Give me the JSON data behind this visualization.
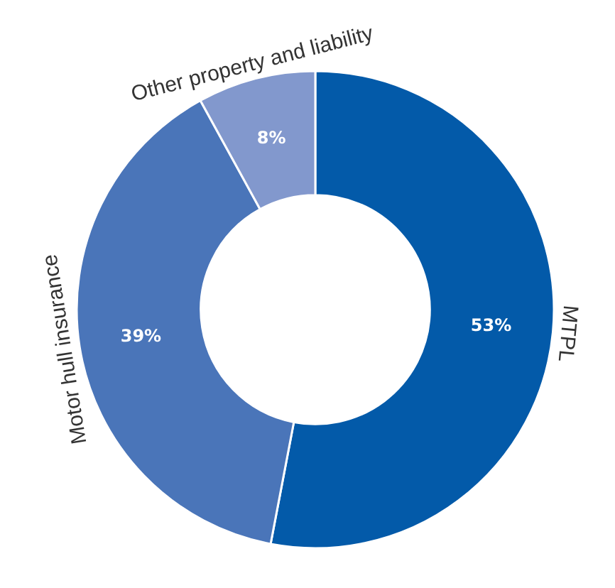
{
  "chart_data": {
    "type": "donut",
    "categories": [
      "MTPL",
      "Motor hull insurance",
      "Other property and liability"
    ],
    "values": [
      53,
      39,
      8
    ],
    "value_labels": [
      "53%",
      "39%",
      "8%"
    ],
    "colors": [
      "#035aa9",
      "#4a75b9",
      "#8298cd"
    ]
  }
}
